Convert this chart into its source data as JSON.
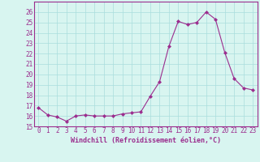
{
  "x": [
    0,
    1,
    2,
    3,
    4,
    5,
    6,
    7,
    8,
    9,
    10,
    11,
    12,
    13,
    14,
    15,
    16,
    17,
    18,
    19,
    20,
    21,
    22,
    23
  ],
  "y": [
    16.8,
    16.1,
    15.9,
    15.5,
    16.0,
    16.1,
    16.0,
    16.0,
    16.0,
    16.2,
    16.3,
    16.4,
    17.9,
    19.3,
    22.7,
    25.1,
    24.8,
    25.0,
    26.0,
    25.3,
    22.1,
    19.6,
    18.7,
    18.5
  ],
  "line_color": "#9B2D8E",
  "marker": "D",
  "marker_size": 2,
  "background_color": "#D8F5F0",
  "grid_color": "#AADDDD",
  "xlabel": "Windchill (Refroidissement éolien,°C)",
  "xlabel_color": "#9B2D8E",
  "tick_color": "#9B2D8E",
  "ylim": [
    15,
    27
  ],
  "yticks": [
    15,
    16,
    17,
    18,
    19,
    20,
    21,
    22,
    23,
    24,
    25,
    26
  ],
  "xticks": [
    0,
    1,
    2,
    3,
    4,
    5,
    6,
    7,
    8,
    9,
    10,
    11,
    12,
    13,
    14,
    15,
    16,
    17,
    18,
    19,
    20,
    21,
    22,
    23
  ],
  "spine_color": "#9B2D8E",
  "tick_fontsize": 5.5,
  "xlabel_fontsize": 6.0
}
